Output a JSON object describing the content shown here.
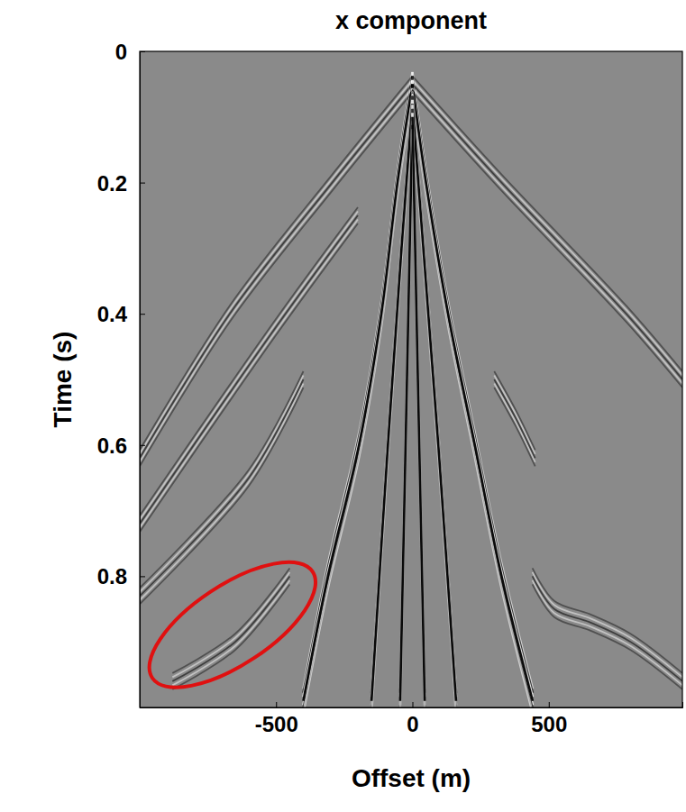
{
  "chart_data": {
    "type": "seismic",
    "title": "x component",
    "x_label": "Offset (m)",
    "y_label": "Time (s)",
    "xlim": [
      -1000,
      990
    ],
    "ylim": [
      0,
      1
    ],
    "xticks": [
      -500,
      0,
      500
    ],
    "yticks": [
      0,
      0.2,
      0.4,
      0.6,
      0.8
    ],
    "series": [
      {
        "x": [
          0,
          -55,
          -114,
          -196,
          -310,
          -400
        ],
        "values": [
          0.05,
          0.2,
          0.4,
          0.6,
          0.8,
          0.99
        ]
      },
      {
        "x": [
          0,
          50,
          131,
          229,
          327,
          441
        ],
        "values": [
          0.05,
          0.2,
          0.4,
          0.6,
          0.8,
          0.99
        ]
      },
      {
        "x": [
          0,
          -40,
          -90,
          -150
        ],
        "values": [
          0.08,
          0.3,
          0.6,
          0.99
        ]
      },
      {
        "x": [
          0,
          40,
          95,
          160
        ],
        "values": [
          0.08,
          0.3,
          0.6,
          0.99
        ]
      },
      {
        "x": [
          0,
          -20,
          -45
        ],
        "values": [
          0.1,
          0.5,
          0.99
        ]
      },
      {
        "x": [
          0,
          20,
          45
        ],
        "values": [
          0.1,
          0.5,
          0.99
        ]
      },
      {
        "x": [
          0,
          -294,
          -670,
          -1000
        ],
        "values": [
          0.05,
          0.2,
          0.4,
          0.62
        ]
      },
      {
        "x": [
          0,
          327,
          784,
          990
        ],
        "values": [
          0.05,
          0.2,
          0.4,
          0.5
        ]
      },
      {
        "x": [
          -200,
          -500,
          -1000
        ],
        "values": [
          0.25,
          0.42,
          0.72
        ]
      },
      {
        "x": [
          -400,
          -600,
          -1000
        ],
        "values": [
          0.5,
          0.65,
          0.83
        ]
      },
      {
        "x": [
          -450,
          -650,
          -880
        ],
        "values": [
          0.8,
          0.9,
          0.96
        ]
      },
      {
        "x": [
          440,
          520,
          650,
          800,
          990
        ],
        "values": [
          0.8,
          0.85,
          0.87,
          0.9,
          0.96
        ]
      },
      {
        "x": [
          300,
          380,
          450
        ],
        "values": [
          0.5,
          0.56,
          0.62
        ]
      }
    ],
    "highlight": {
      "x": [
        -954,
        -366
      ],
      "y": [
        0.955,
        0.793
      ]
    }
  }
}
